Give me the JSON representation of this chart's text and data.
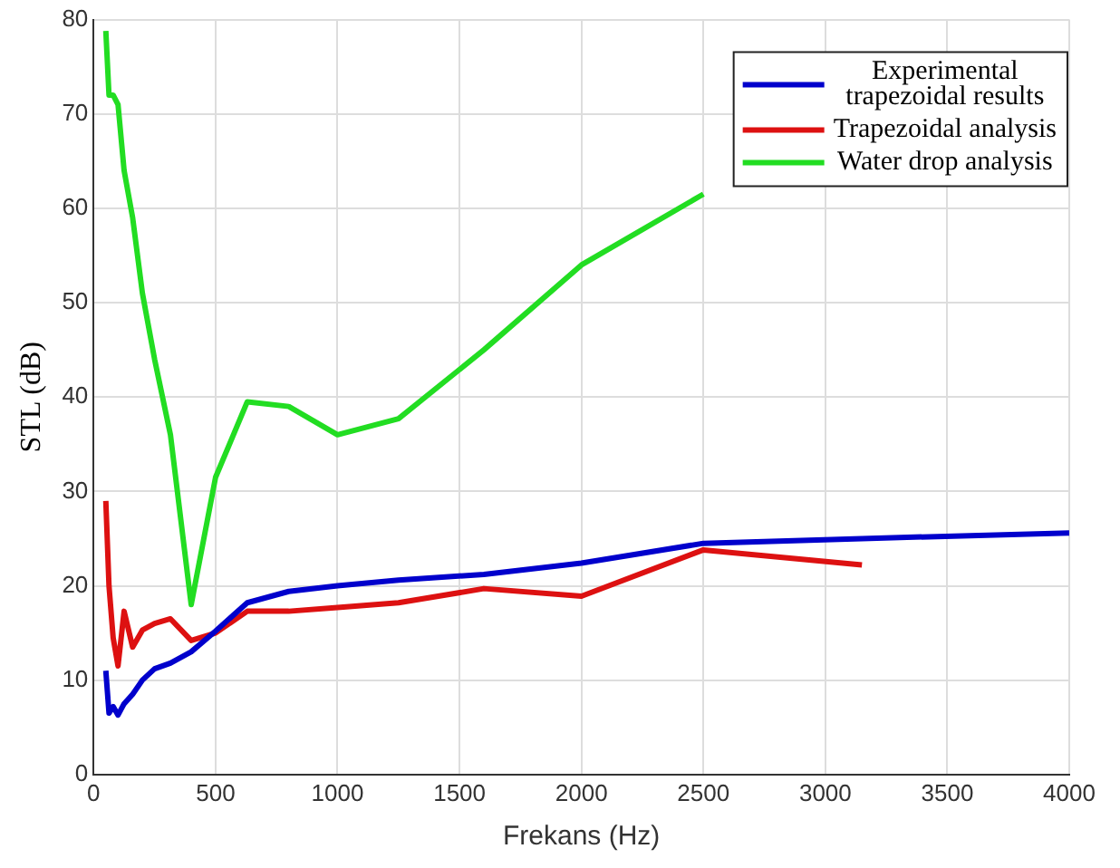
{
  "chart_data": {
    "type": "line",
    "xlabel": "Frekans (Hz)",
    "ylabel": "STL (dB)",
    "xlim": [
      0,
      4000
    ],
    "ylim": [
      0,
      80
    ],
    "xticks": [
      0,
      500,
      1000,
      1500,
      2000,
      2500,
      3000,
      3500,
      4000
    ],
    "yticks": [
      0,
      10,
      20,
      30,
      40,
      50,
      60,
      70,
      80
    ],
    "grid": true,
    "legend": "top right",
    "marker": "none",
    "line_style": "solid",
    "series": [
      {
        "name": "Experimental trapezoidal results",
        "color": "#0000cc",
        "x": [
          50,
          63,
          80,
          100,
          125,
          160,
          200,
          250,
          315,
          400,
          500,
          630,
          800,
          1000,
          1250,
          1600,
          2000,
          2500,
          3150,
          4000
        ],
        "values": [
          11,
          6.5,
          7.2,
          6.3,
          7.5,
          8.5,
          10,
          11.2,
          11.8,
          13,
          15.2,
          18.2,
          19.4,
          20,
          20.6,
          21.2,
          22.4,
          24.5,
          25,
          25.6
        ]
      },
      {
        "name": "Trapezoidal analysis",
        "color": "#dd1111",
        "x": [
          50,
          63,
          80,
          100,
          125,
          160,
          200,
          250,
          315,
          400,
          500,
          630,
          800,
          1000,
          1250,
          1600,
          2000,
          2500,
          3150
        ],
        "values": [
          29,
          20,
          14.5,
          11.5,
          17.3,
          13.5,
          15.3,
          16,
          16.5,
          14.2,
          15,
          17.3,
          17.3,
          17.7,
          18.2,
          19.7,
          18.9,
          23.8,
          22.2
        ]
      },
      {
        "name": "Water drop analysis",
        "color": "#22dd22",
        "x": [
          50,
          63,
          80,
          100,
          125,
          160,
          200,
          250,
          315,
          400,
          500,
          630,
          800,
          1000,
          1250,
          1600,
          2000,
          2500
        ],
        "values": [
          78.8,
          72,
          72,
          71,
          64,
          59,
          51,
          44,
          36,
          18,
          31.5,
          39.5,
          39,
          36,
          37.7,
          45,
          54,
          61.5
        ]
      }
    ]
  }
}
